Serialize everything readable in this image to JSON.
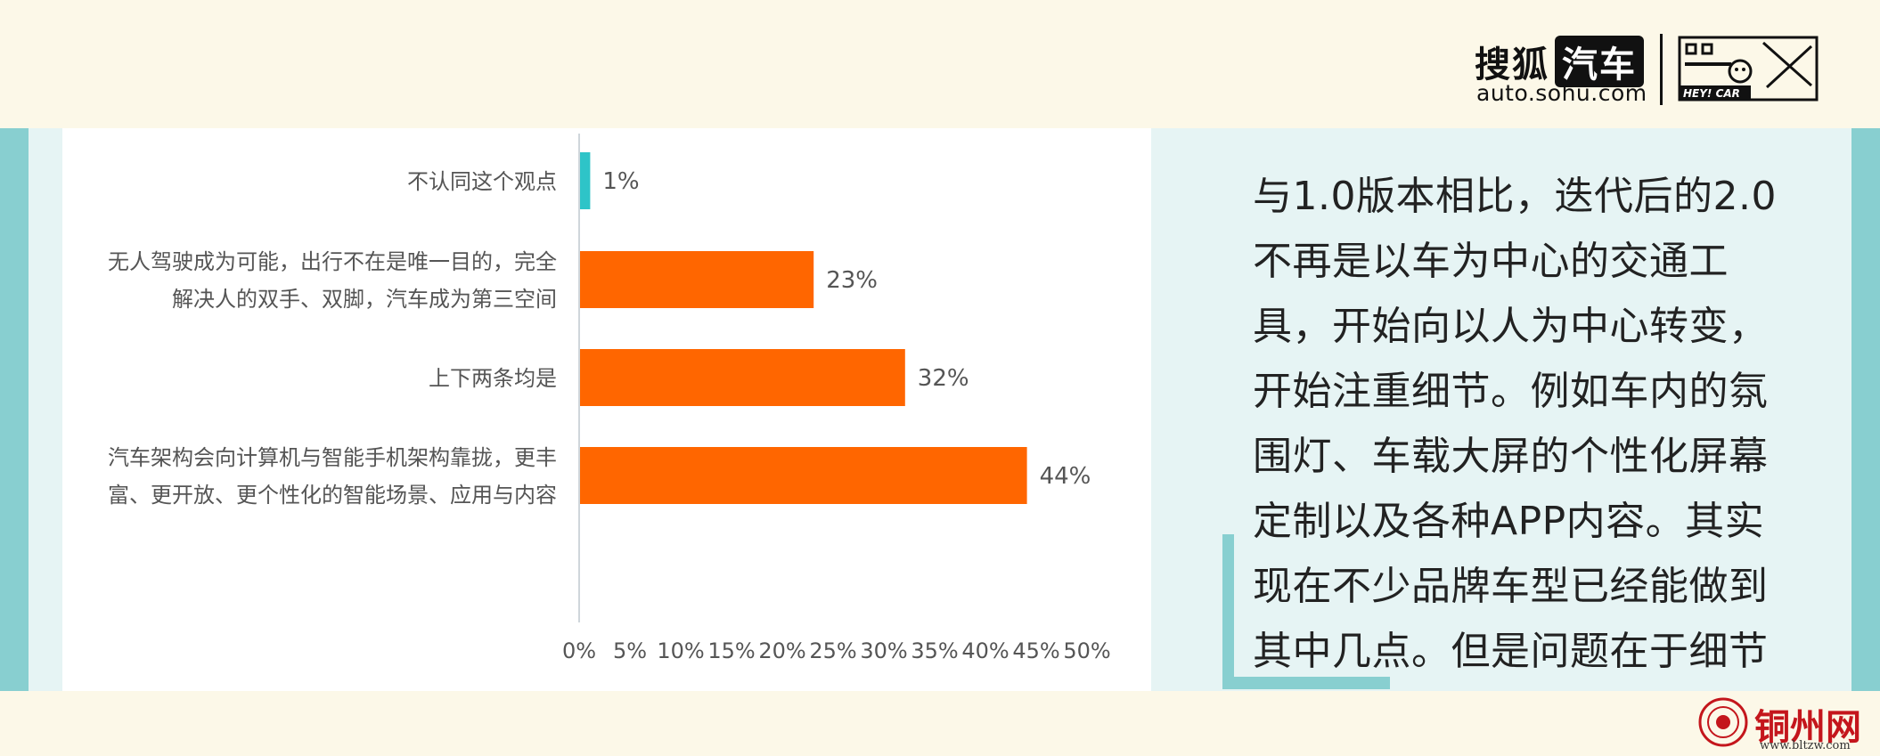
{
  "panel": {
    "text": "与1.0版本相比，迭代后的2.0不再是以车为中心的交通工具，开始向以人为中心转变，开始注重细节。例如车内的氛围灯、车载大屏的个性化屏幕定制以及各种APP内容。其实现在不少品牌车型已经能做到其中几点。但是问题在于细节处理得不够好。"
  },
  "logo": {
    "sohu": "搜狐",
    "car": "汽车",
    "url": "auto.sohu.com",
    "heycar": "HEY! CAR"
  },
  "watermark": {
    "name": "铜州网",
    "url": "www.bltzw.com"
  },
  "colors": {
    "accent": "#88cfd0",
    "bar_primary": "#ff6600",
    "bar_highlight": "#2ec4c8"
  },
  "chart_data": {
    "type": "bar",
    "orientation": "horizontal",
    "categories": [
      [
        "不认同这个观点"
      ],
      [
        "无人驾驶成为可能，出行不在是唯一目的，完全",
        "解决人的双手、双脚，汽车成为第三空间"
      ],
      [
        "上下两条均是"
      ],
      [
        "汽车架构会向计算机与智能手机架构靠拢，更丰",
        "富、更开放、更个性化的智能场景、应用与内容"
      ]
    ],
    "values": [
      1,
      23,
      32,
      44
    ],
    "value_labels": [
      "1%",
      "23%",
      "32%",
      "44%"
    ],
    "bar_colors": [
      "#2ec4c8",
      "#ff6600",
      "#ff6600",
      "#ff6600"
    ],
    "xlim": [
      0,
      50
    ],
    "xticks": [
      "0%",
      "5%",
      "10%",
      "15%",
      "20%",
      "25%",
      "30%",
      "35%",
      "40%",
      "45%",
      "50%"
    ],
    "grid": false,
    "legend": "none"
  }
}
